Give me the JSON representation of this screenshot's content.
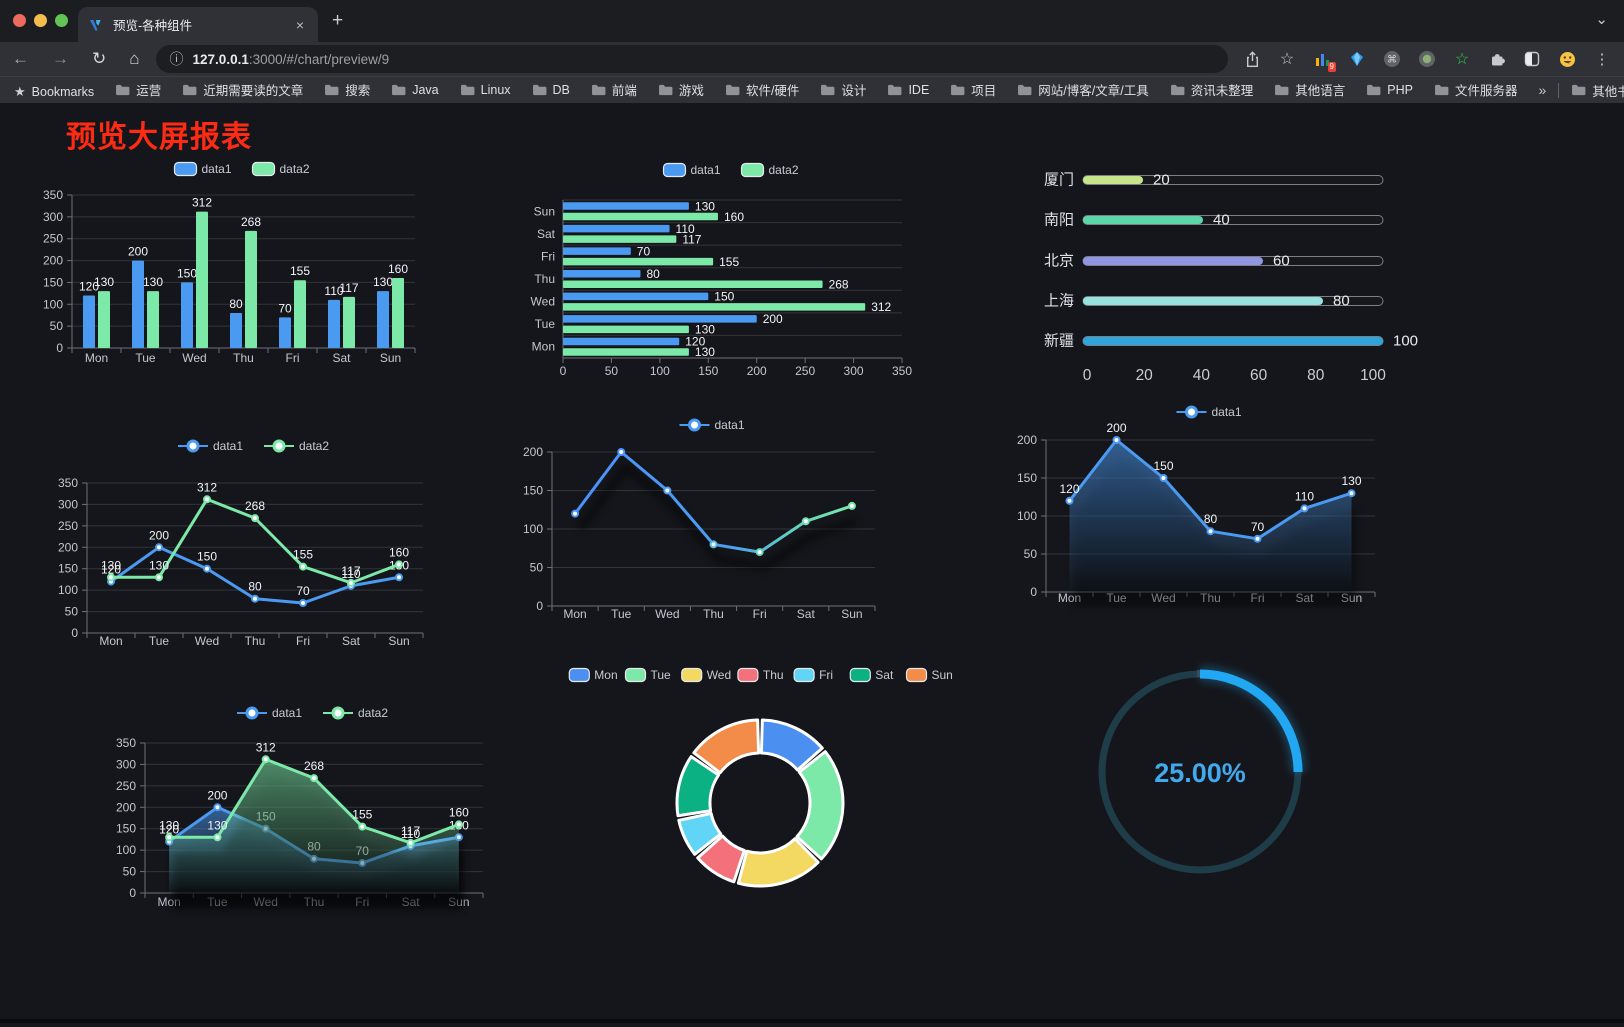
{
  "browser": {
    "tab": {
      "title": "预览-各种组件",
      "close": "×",
      "new_tab": "+"
    },
    "url": {
      "host": "127.0.0.1",
      "rest": ":3000/#/chart/preview/9"
    },
    "bookmarks": [
      "Bookmarks",
      "运营",
      "近期需要读的文章",
      "搜索",
      "Java",
      "Linux",
      "DB",
      "前端",
      "游戏",
      "软件/硬件",
      "设计",
      "IDE",
      "项目",
      "网站/博客/文章/工具",
      "资讯未整理",
      "其他语言",
      "PHP",
      "文件服务器"
    ],
    "bookmarks_overflow": "»",
    "other_bookmarks": "其他书签",
    "extension_badge": "9"
  },
  "page": {
    "title": "预览大屏报表",
    "title_color": "#fe2b14"
  },
  "chart_data": [
    {
      "id": "bar-vertical",
      "type": "bar",
      "categories": [
        "Mon",
        "Tue",
        "Wed",
        "Thu",
        "Fri",
        "Sat",
        "Sun"
      ],
      "series": [
        {
          "name": "data1",
          "color": "#4b9af2",
          "values": [
            120,
            200,
            150,
            80,
            70,
            110,
            130
          ]
        },
        {
          "name": "data2",
          "color": "#7ce9a8",
          "values": [
            130,
            130,
            312,
            268,
            155,
            117,
            160
          ]
        }
      ],
      "ylim": [
        0,
        350
      ],
      "yticks": [
        0,
        50,
        100,
        150,
        200,
        250,
        300,
        350
      ],
      "legend_position": "top",
      "grid": true,
      "show_labels": true
    },
    {
      "id": "bar-horizontal",
      "type": "bar-horizontal",
      "categories": [
        "Mon",
        "Tue",
        "Wed",
        "Thu",
        "Fri",
        "Sat",
        "Sun"
      ],
      "display_order": "bottom-to-top",
      "series": [
        {
          "name": "data1",
          "color": "#4b9af2",
          "values": [
            120,
            200,
            150,
            80,
            70,
            110,
            130
          ]
        },
        {
          "name": "data2",
          "color": "#7ce9a8",
          "values": [
            130,
            130,
            312,
            268,
            155,
            117,
            160
          ]
        }
      ],
      "xlim": [
        0,
        350
      ],
      "xticks": [
        0,
        50,
        100,
        150,
        200,
        250,
        300,
        350
      ],
      "legend_position": "top",
      "grid": true,
      "show_labels": true
    },
    {
      "id": "city-progress",
      "type": "progress",
      "rows": [
        {
          "label": "厦门",
          "value": 20,
          "color": "#c5e48c"
        },
        {
          "label": "南阳",
          "value": 40,
          "color": "#5cd6a9"
        },
        {
          "label": "北京",
          "value": 60,
          "color": "#9095e4"
        },
        {
          "label": "上海",
          "value": 80,
          "color": "#95e2de"
        },
        {
          "label": "新疆",
          "value": 100,
          "color": "#2ea6dd"
        }
      ],
      "xlim": [
        0,
        100
      ],
      "xticks": [
        0,
        20,
        40,
        60,
        80,
        100
      ]
    },
    {
      "id": "line-basic",
      "type": "line",
      "categories": [
        "Mon",
        "Tue",
        "Wed",
        "Thu",
        "Fri",
        "Sat",
        "Sun"
      ],
      "series": [
        {
          "name": "data1",
          "color": "#4b9af2",
          "values": [
            120,
            200,
            150,
            80,
            70,
            110,
            130
          ]
        },
        {
          "name": "data2",
          "color": "#7ce9a8",
          "values": [
            130,
            130,
            312,
            268,
            155,
            117,
            160
          ]
        }
      ],
      "ylim": [
        0,
        350
      ],
      "yticks": [
        0,
        50,
        100,
        150,
        200,
        250,
        300,
        350
      ],
      "legend_position": "top",
      "show_labels": true
    },
    {
      "id": "line-gradient",
      "type": "line",
      "categories": [
        "Mon",
        "Tue",
        "Wed",
        "Thu",
        "Fri",
        "Sat",
        "Sun"
      ],
      "series": [
        {
          "name": "data1",
          "color": "#4b9af2",
          "gradient": [
            "#4992ff",
            "#4d9df0",
            "#5fd0c0",
            "#7ce9a8"
          ],
          "point_colors": [
            "#4992ff",
            "#4992ff",
            "#4e9ef0",
            "#55bade",
            "#63d6c0",
            "#70e0b4",
            "#7ce9a8"
          ],
          "values": [
            120,
            200,
            150,
            80,
            70,
            110,
            130
          ]
        }
      ],
      "ylim": [
        0,
        200
      ],
      "yticks": [
        0,
        50,
        100,
        150,
        200
      ],
      "legend_position": "top",
      "show_labels": false,
      "shadow": true
    },
    {
      "id": "line-area-single",
      "type": "line-area",
      "categories": [
        "Mon",
        "Tue",
        "Wed",
        "Thu",
        "Fri",
        "Sat",
        "Sun"
      ],
      "series": [
        {
          "name": "data1",
          "color": "#4b9af2",
          "values": [
            120,
            200,
            150,
            80,
            70,
            110,
            130
          ]
        }
      ],
      "ylim": [
        0,
        200
      ],
      "yticks": [
        0,
        50,
        100,
        150,
        200
      ],
      "legend_position": "top",
      "show_labels": true,
      "shadow": true
    },
    {
      "id": "line-area-double",
      "type": "line-area",
      "categories": [
        "Mon",
        "Tue",
        "Wed",
        "Thu",
        "Fri",
        "Sat",
        "Sun"
      ],
      "series": [
        {
          "name": "data1",
          "color": "#4b9af2",
          "values": [
            120,
            200,
            150,
            80,
            70,
            110,
            130
          ]
        },
        {
          "name": "data2",
          "color": "#7ce9a8",
          "values": [
            130,
            130,
            312,
            268,
            155,
            117,
            160
          ]
        }
      ],
      "ylim": [
        0,
        350
      ],
      "yticks": [
        0,
        50,
        100,
        150,
        200,
        250,
        300,
        350
      ],
      "legend_position": "top",
      "show_labels": true,
      "shadow": true
    },
    {
      "id": "donut",
      "type": "pie",
      "inner_radius_ratio": 0.6,
      "legend_position": "top",
      "slices": [
        {
          "label": "Mon",
          "value": 120,
          "color": "#4b90f0"
        },
        {
          "label": "Tue",
          "value": 200,
          "color": "#7ce9a8"
        },
        {
          "label": "Wed",
          "value": 150,
          "color": "#f3d861"
        },
        {
          "label": "Thu",
          "value": 80,
          "color": "#f4707a"
        },
        {
          "label": "Fri",
          "value": 70,
          "color": "#60d5f5"
        },
        {
          "label": "Sat",
          "value": 110,
          "color": "#0cb183"
        },
        {
          "label": "Sun",
          "value": 130,
          "color": "#f28c48"
        }
      ]
    },
    {
      "id": "gauge",
      "type": "gauge",
      "value": 25,
      "max": 100,
      "label": "25.00%",
      "color": "#22a7f2",
      "text_color": "#41a9ee",
      "track_color": "#1e3d49"
    }
  ]
}
